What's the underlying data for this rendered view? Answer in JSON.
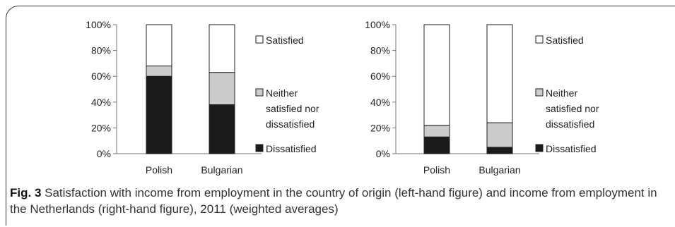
{
  "chart_data": [
    {
      "type": "bar",
      "stacked": true,
      "categories": [
        "Polish",
        "Bulgarian"
      ],
      "series": [
        {
          "name": "Dissatisfied",
          "values": [
            60,
            38
          ],
          "color": "#1a1a1a"
        },
        {
          "name": "Neither satisfied nor dissatisfied",
          "values": [
            8,
            25
          ],
          "color": "#cccccc"
        },
        {
          "name": "Satisfied",
          "values": [
            32,
            37
          ],
          "color": "#ffffff"
        }
      ],
      "ylim": [
        0,
        100
      ],
      "yticks": [
        "0%",
        "20%",
        "40%",
        "60%",
        "80%",
        "100%"
      ],
      "legend_lines": {
        "Satisfied": [
          "Satisfied"
        ],
        "Neither satisfied nor dissatisfied": [
          "Neither",
          "satisfied nor",
          "dissatisfied"
        ],
        "Dissatisfied": [
          "Dissatisfied"
        ]
      },
      "legend_position": "right",
      "grid": false
    },
    {
      "type": "bar",
      "stacked": true,
      "categories": [
        "Polish",
        "Bulgarian"
      ],
      "series": [
        {
          "name": "Dissatisfied",
          "values": [
            13,
            5
          ],
          "color": "#1a1a1a"
        },
        {
          "name": "Neither satisfied nor dissatisfied",
          "values": [
            9,
            19
          ],
          "color": "#cccccc"
        },
        {
          "name": "Satisfied",
          "values": [
            78,
            76
          ],
          "color": "#ffffff"
        }
      ],
      "ylim": [
        0,
        100
      ],
      "yticks": [
        "0%",
        "20%",
        "40%",
        "60%",
        "80%",
        "100%"
      ],
      "legend_lines": {
        "Satisfied": [
          "Satisfied"
        ],
        "Neither satisfied nor dissatisfied": [
          "Neither",
          "satisfied nor",
          "dissatisfied"
        ],
        "Dissatisfied": [
          "Dissatisfied"
        ]
      },
      "legend_position": "right",
      "grid": false
    }
  ],
  "caption": {
    "label": "Fig. 3",
    "text": " Satisfaction with income from employment in the country of origin (left-hand figure) and income from employment in the Netherlands (right-hand figure), 2011 (weighted averages)"
  }
}
